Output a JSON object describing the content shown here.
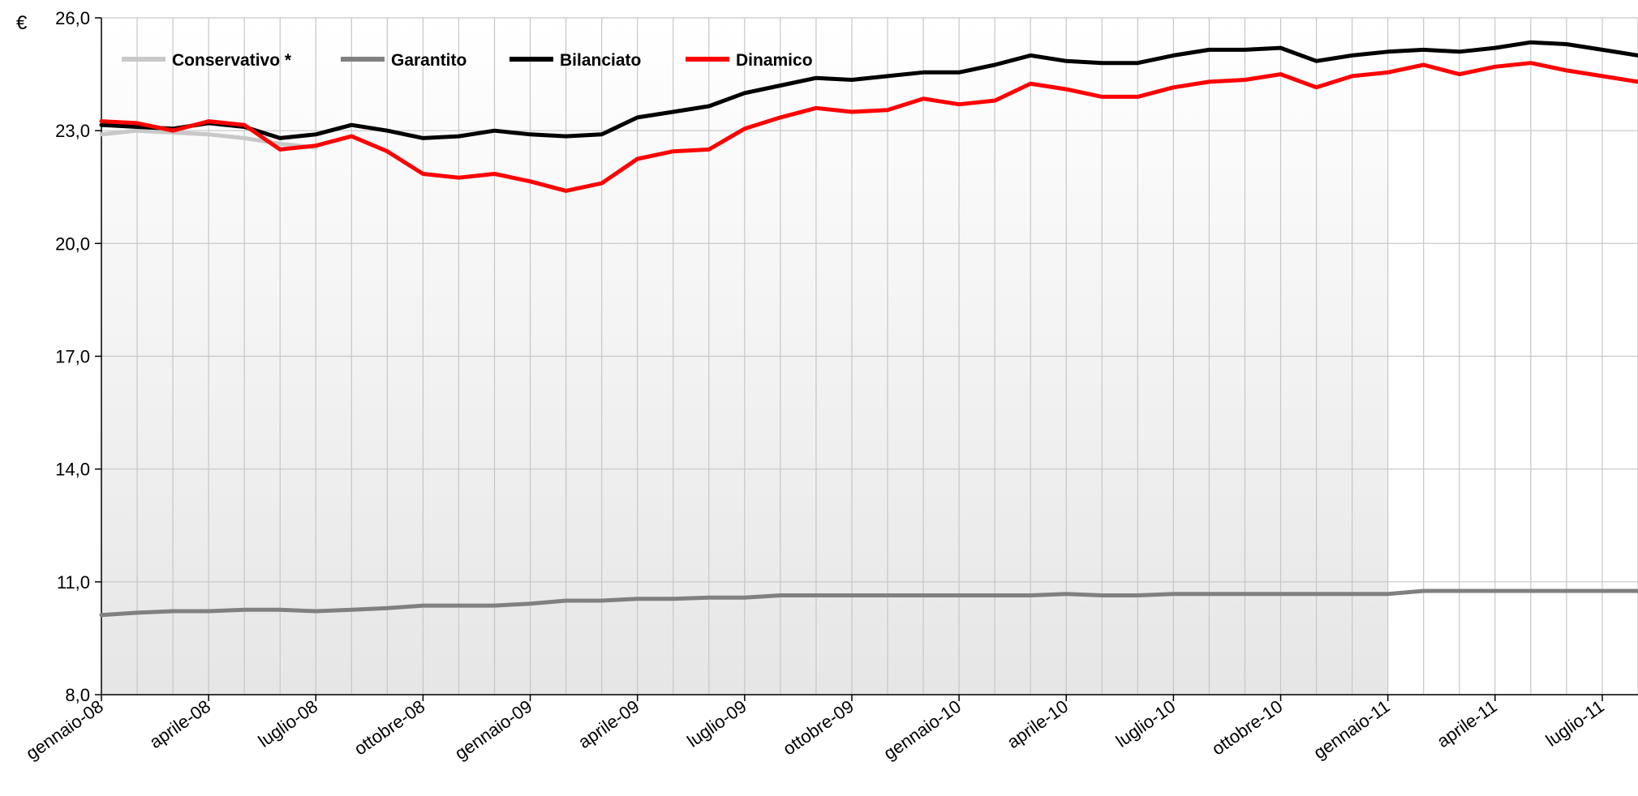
{
  "chart_data": {
    "type": "line",
    "unit": "€",
    "ylim": [
      8,
      26
    ],
    "yticks": [
      8,
      11,
      14,
      17,
      20,
      23,
      26
    ],
    "ytick_labels": [
      "8,0",
      "11,0",
      "14,0",
      "17,0",
      "20,0",
      "23,0",
      "26,0"
    ],
    "xlim": [
      0,
      43
    ],
    "x_tick_positions": [
      0,
      3,
      6,
      9,
      12,
      15,
      18,
      21,
      24,
      27,
      30,
      33,
      36,
      39,
      42
    ],
    "x_tick_labels": [
      "gennaio-08",
      "aprile-08",
      "luglio-08",
      "ottobre-08",
      "gennaio-09",
      "aprile-09",
      "luglio-09",
      "ottobre-09",
      "gennaio-10",
      "aprile-10",
      "luglio-10",
      "ottobre-10",
      "gennaio-11",
      "aprile-11",
      "luglio-11"
    ],
    "grid": true,
    "legend_position": "top-left",
    "shaded_region": {
      "x_start": 0,
      "x_end": 36
    },
    "series": [
      {
        "name": "Conservativo *",
        "color": "#c8c8c8",
        "x": [
          0,
          1,
          2,
          3,
          4,
          5,
          6
        ],
        "values": [
          22.9,
          23.0,
          22.95,
          22.9,
          22.8,
          22.65,
          22.55
        ]
      },
      {
        "name": "Garantito",
        "color": "#808080",
        "x": [
          0,
          1,
          2,
          3,
          4,
          5,
          6,
          7,
          8,
          9,
          10,
          11,
          12,
          13,
          14,
          15,
          16,
          17,
          18,
          19,
          20,
          21,
          22,
          23,
          24,
          25,
          26,
          27,
          28,
          29,
          30,
          31,
          32,
          33,
          34,
          35,
          36,
          37,
          38,
          39,
          40,
          41,
          42,
          43
        ],
        "values": [
          10.12,
          10.18,
          10.22,
          10.22,
          10.26,
          10.26,
          10.22,
          10.26,
          10.3,
          10.37,
          10.37,
          10.37,
          10.42,
          10.5,
          10.5,
          10.55,
          10.55,
          10.58,
          10.58,
          10.64,
          10.64,
          10.64,
          10.64,
          10.64,
          10.64,
          10.64,
          10.64,
          10.68,
          10.64,
          10.64,
          10.68,
          10.68,
          10.68,
          10.68,
          10.68,
          10.68,
          10.68,
          10.76,
          10.76,
          10.76,
          10.76,
          10.76,
          10.76,
          10.76
        ]
      },
      {
        "name": "Bilanciato",
        "color": "#000000",
        "x": [
          0,
          1,
          2,
          3,
          4,
          5,
          6,
          7,
          8,
          9,
          10,
          11,
          12,
          13,
          14,
          15,
          16,
          17,
          18,
          19,
          20,
          21,
          22,
          23,
          24,
          25,
          26,
          27,
          28,
          29,
          30,
          31,
          32,
          33,
          34,
          35,
          36,
          37,
          38,
          39,
          40,
          41,
          42,
          43
        ],
        "values": [
          23.15,
          23.1,
          23.05,
          23.2,
          23.1,
          22.8,
          22.9,
          23.15,
          23.0,
          22.8,
          22.85,
          23.0,
          22.9,
          22.85,
          22.9,
          23.35,
          23.5,
          23.65,
          24.0,
          24.2,
          24.4,
          24.35,
          24.45,
          24.55,
          24.55,
          24.75,
          25.0,
          24.85,
          24.8,
          24.8,
          25.0,
          25.15,
          25.15,
          25.2,
          24.85,
          25.0,
          25.1,
          25.15,
          25.1,
          25.2,
          25.35,
          25.3,
          25.15,
          25.0
        ]
      },
      {
        "name": "Dinamico",
        "color": "#ff0000",
        "x": [
          0,
          1,
          2,
          3,
          4,
          5,
          6,
          7,
          8,
          9,
          10,
          11,
          12,
          13,
          14,
          15,
          16,
          17,
          18,
          19,
          20,
          21,
          22,
          23,
          24,
          25,
          26,
          27,
          28,
          29,
          30,
          31,
          32,
          33,
          34,
          35,
          36,
          37,
          38,
          39,
          40,
          41,
          42,
          43
        ],
        "values": [
          23.25,
          23.2,
          23.0,
          23.25,
          23.15,
          22.5,
          22.6,
          22.85,
          22.45,
          21.85,
          21.75,
          21.85,
          21.65,
          21.4,
          21.6,
          22.25,
          22.45,
          22.5,
          23.05,
          23.35,
          23.6,
          23.5,
          23.55,
          23.85,
          23.7,
          23.8,
          24.25,
          24.1,
          23.9,
          23.9,
          24.15,
          24.3,
          24.35,
          24.5,
          24.15,
          24.45,
          24.55,
          24.75,
          24.5,
          24.7,
          24.8,
          24.6,
          24.45,
          24.3
        ]
      }
    ]
  }
}
